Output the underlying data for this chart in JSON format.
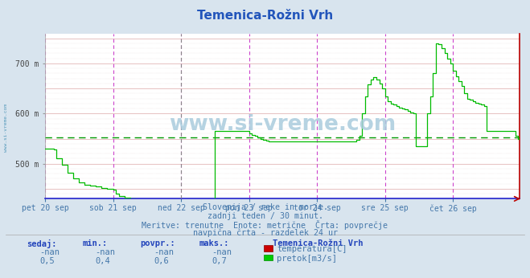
{
  "title": "Temenica-Rožni Vrh",
  "bg_color": "#d8e4ee",
  "plot_bg_color": "#ffffff",
  "avg_line_value": 553,
  "ymin": 430,
  "ymax": 760,
  "yticks": [
    500,
    600,
    700
  ],
  "ytick_labels": [
    "500 m",
    "600 m",
    "700 m"
  ],
  "title_color": "#2255bb",
  "flow_color": "#00bb00",
  "temp_color": "#cc0000",
  "watermark_color": "#aaccdd",
  "vertical_lines_color": "#cc44cc",
  "x_day_labels": [
    "pet 20 sep",
    "sob 21 sep",
    "ned 22 sep",
    "pon 23 sep",
    "tor 24 sep",
    "sre 25 sep",
    "čet 26 sep"
  ],
  "x_day_positions": [
    0,
    48,
    96,
    144,
    192,
    240,
    288
  ],
  "total_points": 336,
  "subtitle1": "Slovenija / reke in morje.",
  "subtitle2": "zadnji teden / 30 minut.",
  "subtitle3": "Meritve: trenutne  Enote: metrične  Črta: povprečje",
  "subtitle4": "navpična črta - razdelek 24 ur",
  "legend_station": "Temenica-Rožni Vrh",
  "legend_temp_label": "temperatura[C]",
  "legend_flow_label": "pretok[m3/s]",
  "table_headers": [
    "sedaj:",
    "min.:",
    "povpr.:",
    "maks.:"
  ],
  "table_temp": [
    "-nan",
    "-nan",
    "-nan",
    "-nan"
  ],
  "table_flow": [
    "0,5",
    "0,4",
    "0,6",
    "0,7"
  ],
  "ned22_vline_color": "#888888",
  "flow_data_raw": [
    530,
    530,
    530,
    530,
    530,
    530,
    528,
    528,
    510,
    510,
    510,
    510,
    498,
    498,
    498,
    498,
    482,
    482,
    482,
    482,
    470,
    470,
    470,
    470,
    462,
    462,
    462,
    462,
    458,
    458,
    458,
    458,
    456,
    456,
    456,
    456,
    454,
    454,
    454,
    454,
    452,
    452,
    452,
    452,
    450,
    450,
    450,
    450,
    448,
    448,
    440,
    440,
    435,
    435,
    435,
    435,
    432,
    432,
    432,
    432,
    430,
    430,
    430,
    430,
    428,
    428,
    428,
    428,
    426,
    426,
    426,
    426,
    424,
    424,
    424,
    424,
    422,
    422,
    422,
    422,
    420,
    420,
    420,
    420,
    418,
    418,
    418,
    418,
    416,
    416,
    416,
    416,
    415,
    415,
    415,
    415,
    414,
    414,
    414,
    414,
    413,
    413,
    413,
    413,
    412,
    412,
    412,
    412,
    411,
    411,
    411,
    411,
    410,
    410,
    410,
    410,
    410,
    410,
    410,
    410,
    565,
    565,
    565,
    565,
    565,
    565,
    565,
    565,
    565,
    565,
    565,
    565,
    565,
    565,
    565,
    565,
    565,
    565,
    565,
    565,
    565,
    565,
    565,
    565,
    560,
    560,
    558,
    558,
    555,
    555,
    552,
    552,
    550,
    550,
    548,
    548,
    546,
    546,
    545,
    545,
    545,
    545,
    545,
    545,
    545,
    545,
    545,
    545,
    545,
    545,
    545,
    545,
    545,
    545,
    545,
    545,
    545,
    545,
    545,
    545,
    545,
    545,
    545,
    545,
    545,
    545,
    545,
    545,
    545,
    545,
    545,
    545,
    545,
    545,
    545,
    545,
    545,
    545,
    545,
    545,
    545,
    545,
    545,
    545,
    545,
    545,
    545,
    545,
    545,
    545,
    545,
    545,
    545,
    545,
    545,
    545,
    545,
    545,
    545,
    545,
    548,
    548,
    555,
    555,
    600,
    600,
    635,
    635,
    658,
    658,
    668,
    668,
    672,
    672,
    668,
    668,
    660,
    660,
    650,
    650,
    635,
    635,
    625,
    625,
    620,
    620,
    618,
    618,
    615,
    615,
    612,
    612,
    610,
    610,
    608,
    608,
    605,
    605,
    602,
    602,
    600,
    600,
    535,
    535,
    535,
    535,
    535,
    535,
    535,
    535,
    600,
    600,
    635,
    635,
    680,
    680,
    740,
    740,
    738,
    738,
    730,
    730,
    720,
    720,
    710,
    710,
    700,
    700,
    685,
    685,
    675,
    675,
    665,
    665,
    655,
    655,
    640,
    640,
    630,
    630,
    628,
    628,
    625,
    625,
    622,
    622,
    620,
    620,
    618,
    618,
    615,
    615,
    565,
    565,
    565,
    565,
    565,
    565,
    565,
    565,
    565,
    565,
    565,
    565,
    565,
    565,
    565,
    565,
    565,
    565,
    565,
    565,
    555,
    555,
    550,
    550,
    548,
    548,
    545,
    545,
    540,
    540,
    538,
    538,
    536,
    536,
    534,
    534
  ]
}
